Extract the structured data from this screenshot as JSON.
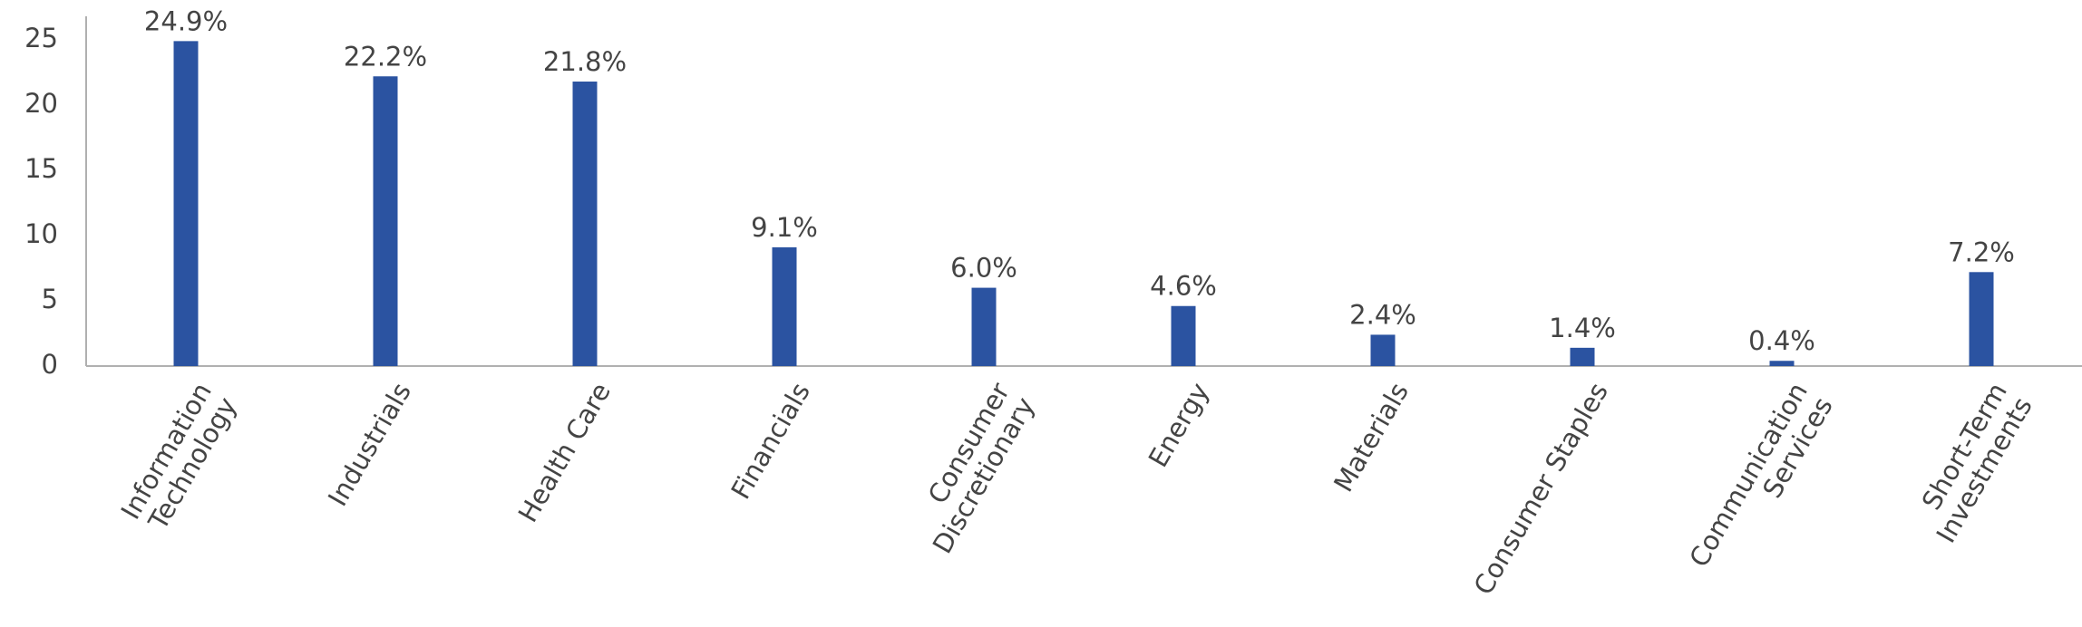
{
  "chart_data": {
    "type": "bar",
    "categories": [
      [
        "Information",
        "Technology"
      ],
      [
        "Industrials"
      ],
      [
        "Health Care"
      ],
      [
        "Financials"
      ],
      [
        "Consumer",
        "Discretionary"
      ],
      [
        "Energy"
      ],
      [
        "Materials"
      ],
      [
        "Consumer Staples"
      ],
      [
        "Communication",
        "Services"
      ],
      [
        "Short-Term",
        "Investments"
      ]
    ],
    "values": [
      24.9,
      22.2,
      21.8,
      9.1,
      6.0,
      4.6,
      2.4,
      1.4,
      0.4,
      7.2
    ],
    "value_labels": [
      "24.9%",
      "22.2%",
      "21.8%",
      "9.1%",
      "6.0%",
      "4.6%",
      "2.4%",
      "1.4%",
      "0.4%",
      "7.2%"
    ],
    "color": "#2b53a1",
    "ylim": [
      0,
      26.8
    ],
    "yticks": [
      0,
      5,
      10,
      15,
      20,
      25
    ],
    "grid": false
  }
}
